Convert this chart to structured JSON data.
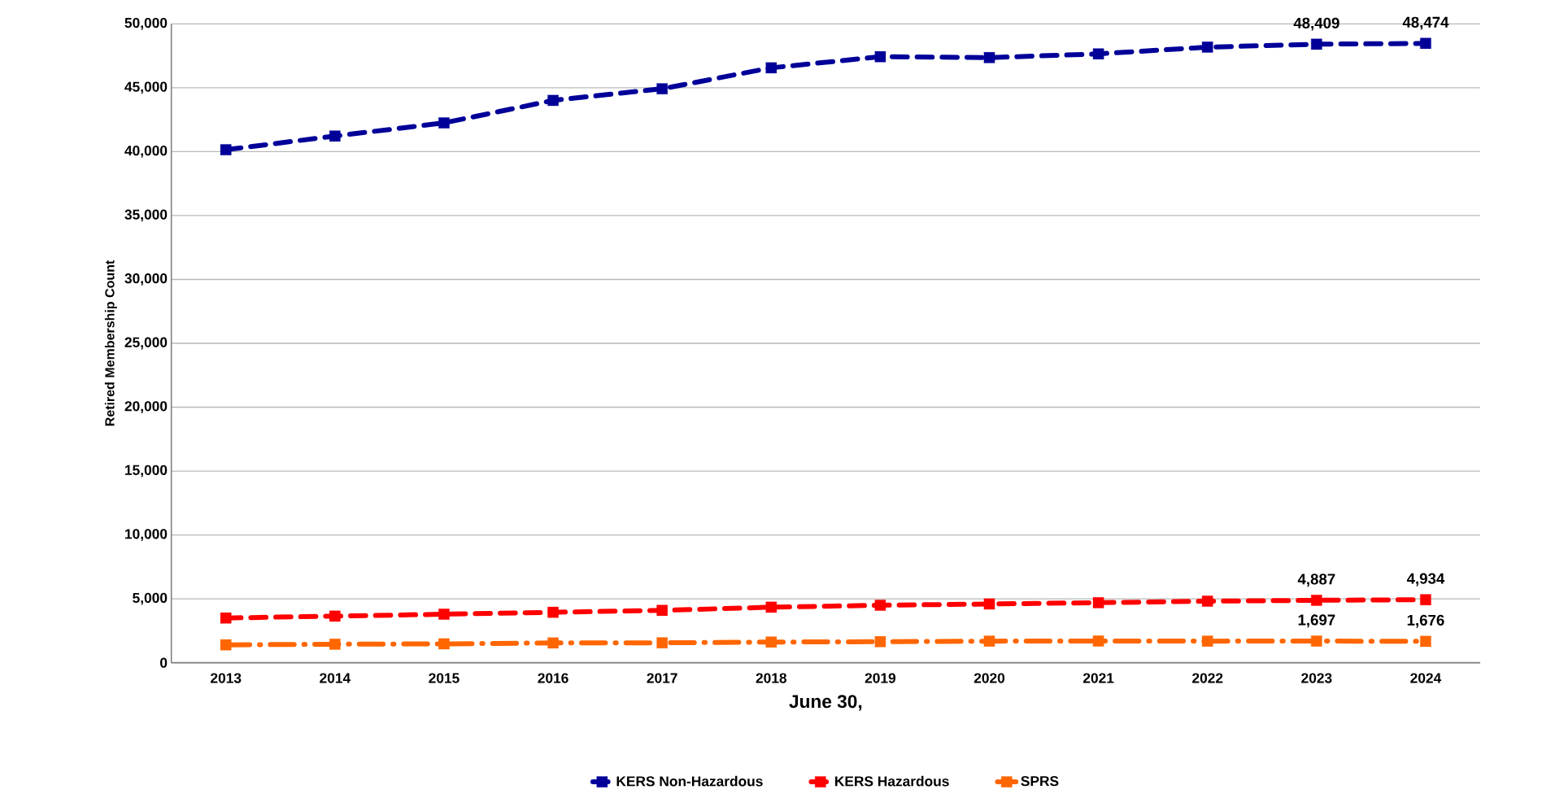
{
  "chart_data": {
    "type": "line",
    "xlabel": "June 30,",
    "ylabel": "Retired Membership Count",
    "categories": [
      "2013",
      "2014",
      "2015",
      "2016",
      "2017",
      "2018",
      "2019",
      "2020",
      "2021",
      "2022",
      "2023",
      "2024"
    ],
    "series": [
      {
        "name": "KERS Non-Hazardous",
        "color": "#000099",
        "line_style": "dashed",
        "values": [
          40150,
          41220,
          42250,
          44010,
          44920,
          46560,
          47430,
          47360,
          47650,
          48180,
          48409,
          48474
        ],
        "value_labels": [
          null,
          null,
          null,
          null,
          null,
          null,
          null,
          null,
          null,
          null,
          "48,409",
          "48,474"
        ]
      },
      {
        "name": "KERS Hazardous",
        "color": "#ff0000",
        "line_style": "dashed",
        "values": [
          3500,
          3650,
          3800,
          3950,
          4100,
          4350,
          4500,
          4600,
          4700,
          4820,
          4887,
          4934
        ],
        "value_labels": [
          null,
          null,
          null,
          null,
          null,
          null,
          null,
          null,
          null,
          null,
          "4,887",
          "4,934"
        ]
      },
      {
        "name": "SPRS",
        "color": "#ff6600",
        "line_style": "dashdot",
        "values": [
          1400,
          1450,
          1480,
          1550,
          1560,
          1620,
          1650,
          1690,
          1700,
          1690,
          1697,
          1676
        ],
        "value_labels": [
          null,
          null,
          null,
          null,
          null,
          null,
          null,
          null,
          null,
          null,
          "1,697",
          "1,676"
        ]
      }
    ],
    "ylim": [
      0,
      50000
    ],
    "yticks": [
      {
        "value": 0,
        "label": "0"
      },
      {
        "value": 5000,
        "label": "5,000"
      },
      {
        "value": 10000,
        "label": "10,000"
      },
      {
        "value": 15000,
        "label": "15,000"
      },
      {
        "value": 20000,
        "label": "20,000"
      },
      {
        "value": 25000,
        "label": "25,000"
      },
      {
        "value": 30000,
        "label": "30,000"
      },
      {
        "value": 35000,
        "label": "35,000"
      },
      {
        "value": 40000,
        "label": "40,000"
      },
      {
        "value": 45000,
        "label": "45,000"
      },
      {
        "value": 50000,
        "label": "50,000"
      }
    ],
    "grid": "y",
    "legend": "bottom",
    "marker": "square"
  }
}
